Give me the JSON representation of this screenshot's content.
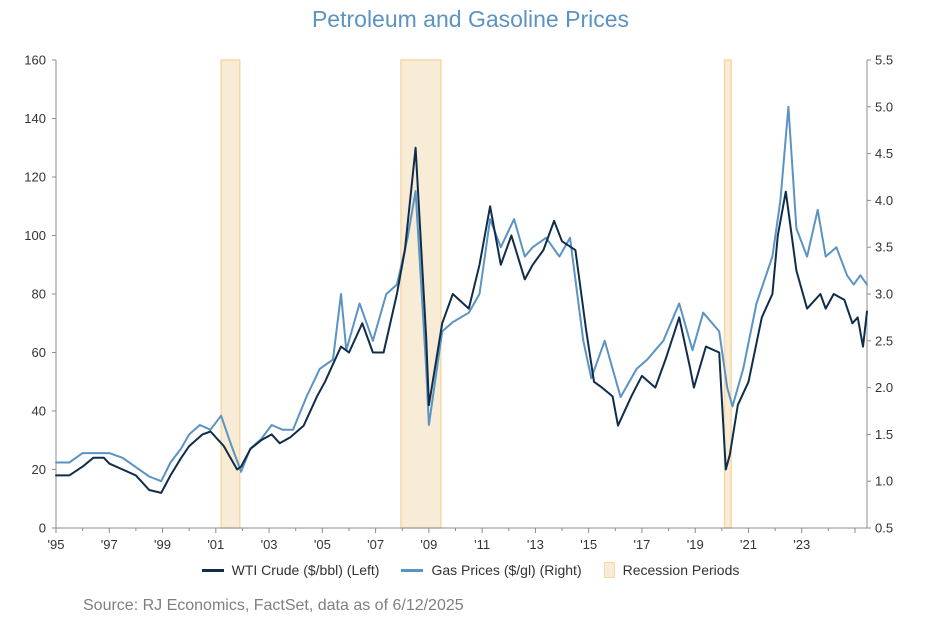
{
  "chart_data": {
    "type": "line",
    "title": "Petroleum and Gasoline Prices",
    "source": "Source: RJ Economics, FactSet, data as of 6/12/2025",
    "x_range": [
      1995.0,
      2025.45
    ],
    "x_tick_labels": [
      {
        "value": 1995,
        "label": "'95"
      },
      {
        "value": 1997,
        "label": "'97"
      },
      {
        "value": 1999,
        "label": "'99"
      },
      {
        "value": 2001,
        "label": "'01"
      },
      {
        "value": 2003,
        "label": "'03"
      },
      {
        "value": 2005,
        "label": "'05"
      },
      {
        "value": 2007,
        "label": "'07"
      },
      {
        "value": 2009,
        "label": "'09"
      },
      {
        "value": 2011,
        "label": "'11"
      },
      {
        "value": 2013,
        "label": "'13"
      },
      {
        "value": 2015,
        "label": "'15"
      },
      {
        "value": 2017,
        "label": "'17"
      },
      {
        "value": 2019,
        "label": "'19"
      },
      {
        "value": 2021,
        "label": "'21"
      },
      {
        "value": 2023,
        "label": "'23"
      }
    ],
    "y_left": {
      "min": 0,
      "max": 160,
      "step": 20,
      "ticks": [
        "0",
        "20",
        "40",
        "60",
        "80",
        "100",
        "120",
        "140",
        "160"
      ]
    },
    "y_right": {
      "min": 0.5,
      "max": 5.5,
      "step": 0.5,
      "ticks": [
        "0.5",
        "1.0",
        "1.5",
        "2.0",
        "2.5",
        "3.0",
        "3.5",
        "4.0",
        "4.5",
        "5.0",
        "5.5"
      ]
    },
    "recessions": [
      {
        "start": 2001.2,
        "end": 2001.9
      },
      {
        "start": 2007.95,
        "end": 2009.45
      },
      {
        "start": 2020.1,
        "end": 2020.35
      }
    ],
    "series": [
      {
        "name": "WTI Crude ($/bbl) (Left)",
        "axis": "left",
        "color": "#0f2d4b",
        "x": [
          1995.0,
          1995.5,
          1996.0,
          1996.4,
          1996.8,
          1997.0,
          1997.5,
          1998.0,
          1998.5,
          1998.95,
          1999.3,
          1999.7,
          2000.0,
          2000.5,
          2000.8,
          2001.3,
          2001.8,
          2001.95,
          2002.3,
          2002.7,
          2003.1,
          2003.4,
          2003.8,
          2004.3,
          2004.8,
          2005.1,
          2005.7,
          2006.0,
          2006.5,
          2006.9,
          2007.3,
          2007.8,
          2008.1,
          2008.5,
          2008.9,
          2009.0,
          2009.5,
          2009.9,
          2010.5,
          2010.9,
          2011.3,
          2011.7,
          2012.1,
          2012.6,
          2012.9,
          2013.3,
          2013.7,
          2014.0,
          2014.5,
          2014.9,
          2015.2,
          2015.5,
          2015.9,
          2016.1,
          2016.6,
          2017.0,
          2017.5,
          2017.9,
          2018.4,
          2018.8,
          2018.95,
          2019.4,
          2019.9,
          2020.15,
          2020.3,
          2020.6,
          2021.0,
          2021.5,
          2021.9,
          2022.1,
          2022.4,
          2022.8,
          2023.2,
          2023.7,
          2023.9,
          2024.2,
          2024.6,
          2024.9,
          2025.1,
          2025.3,
          2025.45
        ],
        "values": [
          18,
          18,
          21,
          24,
          24,
          22,
          20,
          18,
          13,
          12,
          18,
          24,
          28,
          32,
          33,
          28,
          20,
          21,
          27,
          30,
          32,
          29,
          31,
          35,
          45,
          50,
          62,
          60,
          70,
          60,
          60,
          80,
          95,
          130,
          65,
          42,
          70,
          80,
          75,
          90,
          110,
          90,
          100,
          85,
          90,
          95,
          105,
          98,
          95,
          68,
          50,
          48,
          45,
          35,
          45,
          52,
          48,
          58,
          72,
          55,
          48,
          62,
          60,
          20,
          25,
          42,
          50,
          72,
          80,
          100,
          115,
          88,
          75,
          80,
          75,
          80,
          78,
          70,
          72,
          62,
          74
        ]
      },
      {
        "name": "Gas Prices ($/gl) (Right)",
        "axis": "right",
        "color": "#5b93c3",
        "x": [
          1995.0,
          1995.5,
          1996.0,
          1996.5,
          1997.0,
          1997.5,
          1998.0,
          1998.5,
          1998.95,
          1999.3,
          1999.7,
          2000.0,
          2000.4,
          2000.8,
          2001.2,
          2001.5,
          2001.95,
          2002.3,
          2002.7,
          2003.1,
          2003.5,
          2003.9,
          2004.4,
          2004.9,
          2005.4,
          2005.7,
          2005.9,
          2006.4,
          2006.9,
          2007.4,
          2007.8,
          2008.2,
          2008.5,
          2008.9,
          2009.0,
          2009.5,
          2009.9,
          2010.5,
          2010.9,
          2011.3,
          2011.7,
          2012.2,
          2012.6,
          2012.9,
          2013.4,
          2013.9,
          2014.3,
          2014.8,
          2015.1,
          2015.6,
          2015.9,
          2016.2,
          2016.8,
          2017.2,
          2017.8,
          2018.4,
          2018.9,
          2019.3,
          2019.9,
          2020.2,
          2020.4,
          2020.8,
          2021.3,
          2021.9,
          2022.2,
          2022.5,
          2022.8,
          2023.2,
          2023.6,
          2023.9,
          2024.3,
          2024.7,
          2024.95,
          2025.2,
          2025.45
        ],
        "values": [
          1.2,
          1.2,
          1.3,
          1.3,
          1.3,
          1.25,
          1.15,
          1.05,
          1.0,
          1.2,
          1.35,
          1.5,
          1.6,
          1.55,
          1.7,
          1.45,
          1.1,
          1.35,
          1.45,
          1.6,
          1.55,
          1.55,
          1.9,
          2.2,
          2.3,
          3.0,
          2.4,
          2.9,
          2.5,
          3.0,
          3.1,
          3.6,
          4.1,
          2.2,
          1.6,
          2.6,
          2.7,
          2.8,
          3.0,
          3.8,
          3.5,
          3.8,
          3.4,
          3.5,
          3.6,
          3.4,
          3.6,
          2.5,
          2.1,
          2.5,
          2.2,
          1.9,
          2.2,
          2.3,
          2.5,
          2.9,
          2.4,
          2.8,
          2.6,
          2.0,
          1.8,
          2.2,
          2.9,
          3.4,
          4.0,
          5.0,
          3.7,
          3.4,
          3.9,
          3.4,
          3.5,
          3.2,
          3.1,
          3.2,
          3.1
        ]
      }
    ],
    "legend": [
      {
        "label": "WTI Crude ($/bbl) (Left)",
        "kind": "line",
        "color": "#0f2d4b"
      },
      {
        "label": "Gas Prices ($/gl) (Right)",
        "kind": "line",
        "color": "#5b93c3"
      },
      {
        "label": "Recession Periods",
        "kind": "box",
        "color": "#f9ecd6"
      }
    ]
  }
}
